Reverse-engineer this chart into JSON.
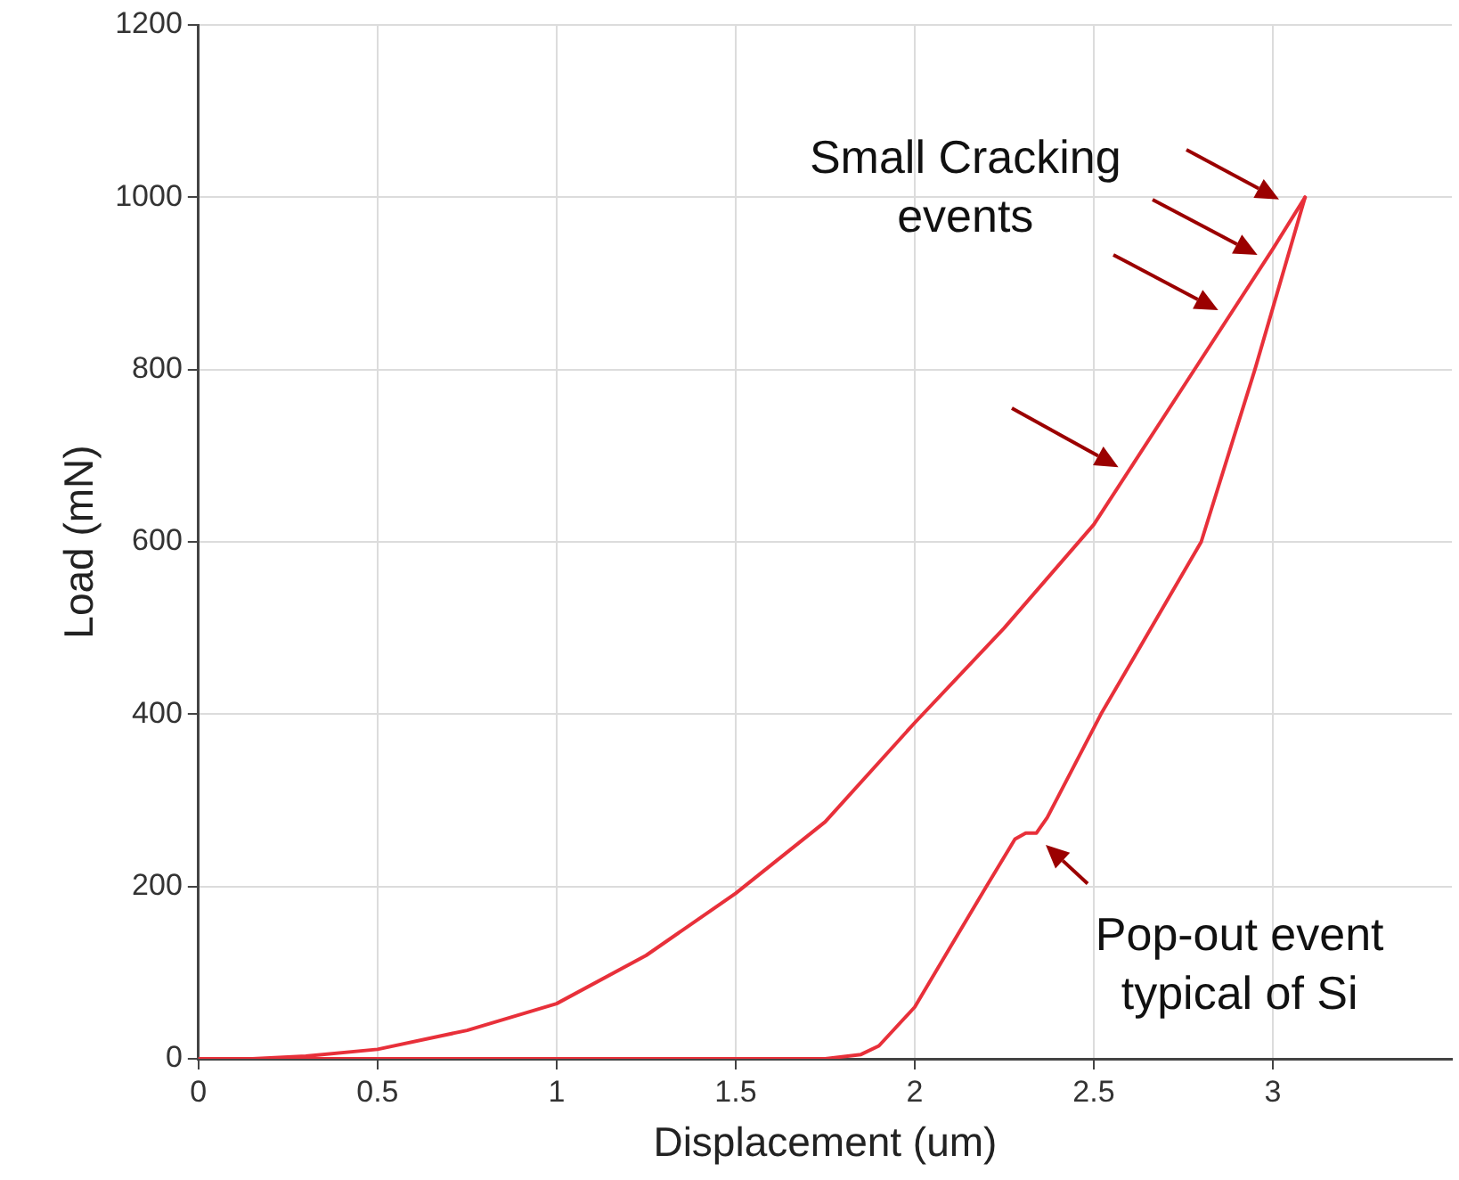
{
  "chart_data": {
    "type": "line",
    "xlabel": "Displacement (um)",
    "ylabel": "Load (mN)",
    "xlim": [
      0,
      3.5
    ],
    "xticks": [
      0,
      0.5,
      1,
      1.5,
      2,
      2.5,
      3
    ],
    "ylim": [
      0,
      1200
    ],
    "yticks": [
      0,
      200,
      400,
      600,
      800,
      1000,
      1200
    ],
    "grid": true,
    "legend": false,
    "marker": "none",
    "line_style": "solid",
    "series": [
      {
        "color": "#e8303a",
        "x": [
          0,
          0.15,
          0.3,
          0.5,
          0.75,
          1,
          1.25,
          1.5,
          1.75,
          2,
          2.25,
          2.5,
          2.75,
          3,
          3.09
        ],
        "values": [
          0,
          0,
          3,
          11,
          33,
          64,
          120,
          192,
          275,
          390,
          500,
          620,
          780,
          940,
          1000
        ]
      },
      {
        "color": "#e8303a",
        "x": [
          0,
          1.75,
          1.85,
          1.9,
          2,
          2.1,
          2.2,
          2.28,
          2.31,
          2.34,
          2.37,
          2.52,
          2.8,
          2.95,
          3.09
        ],
        "values": [
          0,
          0,
          5,
          15,
          60,
          130,
          200,
          255,
          262,
          262,
          280,
          400,
          600,
          800,
          1000
        ]
      }
    ],
    "annotations": [
      "Small Cracking events",
      "Pop-out event typical of Si"
    ]
  }
}
